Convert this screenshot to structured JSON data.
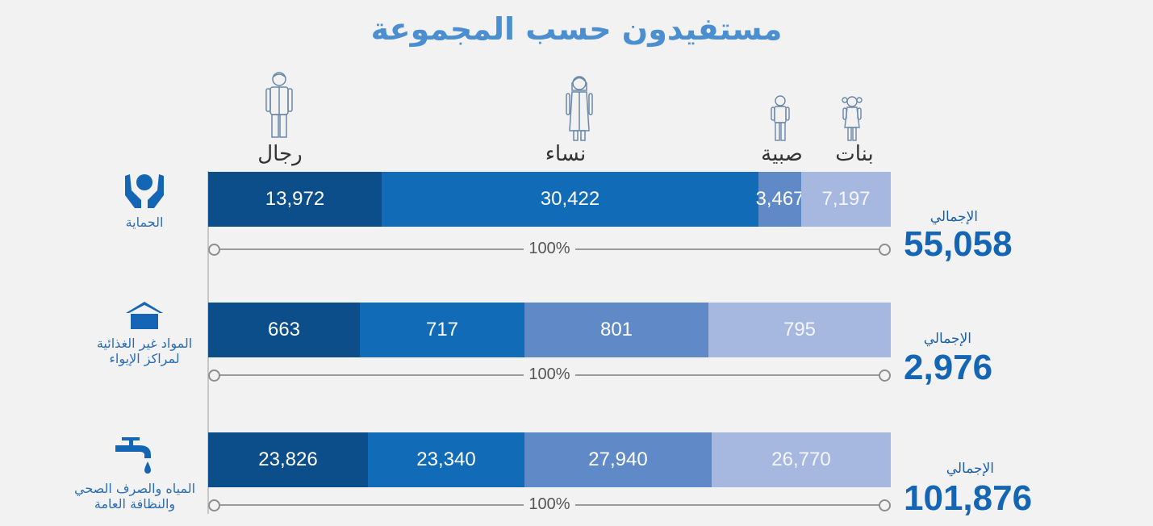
{
  "title": "مستفيدون حسب المجموعة",
  "groups": {
    "men": "رجال",
    "women": "نساء",
    "boys": "صبية",
    "girls": "بنات"
  },
  "colors": {
    "men": "#0b4e8a",
    "women": "#126bb7",
    "boys": "#5f8ac7",
    "girls": "#a7b8e0",
    "title": "#4b8fd0",
    "total": "#1565b5"
  },
  "percent_label": "100%",
  "total_label": "الإجمالي",
  "chart_data": {
    "type": "bar",
    "stacked": true,
    "orientation": "horizontal",
    "normalized": true,
    "title": "مستفيدون حسب المجموعة",
    "categories": [
      "الحماية",
      "المواد غير الغذائية لمراكز الإيواء",
      "المياه والصرف الصحي والنظافة العامة"
    ],
    "series": [
      {
        "name": "رجال",
        "values": [
          13972,
          663,
          23826
        ]
      },
      {
        "name": "نساء",
        "values": [
          30422,
          717,
          23340
        ]
      },
      {
        "name": "صبية",
        "values": [
          3467,
          801,
          27940
        ]
      },
      {
        "name": "بنات",
        "values": [
          7197,
          795,
          26770
        ]
      }
    ],
    "totals": [
      "55,058",
      "2,976",
      "101,876"
    ],
    "value_labels": [
      [
        "13,972",
        "30,422",
        "3,467",
        "7,197"
      ],
      [
        "663",
        "717",
        "801",
        "795"
      ],
      [
        "23,826",
        "23,340",
        "27,940",
        "26,770"
      ]
    ]
  },
  "sectors": [
    {
      "line1": "الحماية",
      "line2": "",
      "icon": "hands-protection-icon"
    },
    {
      "line1": "المواد غير الغذائية",
      "line2": "لمراكز الإيواء",
      "icon": "shelter-icon"
    },
    {
      "line1": "المياه والصرف الصحي",
      "line2": "والنظافة العامة",
      "icon": "water-tap-icon"
    }
  ]
}
